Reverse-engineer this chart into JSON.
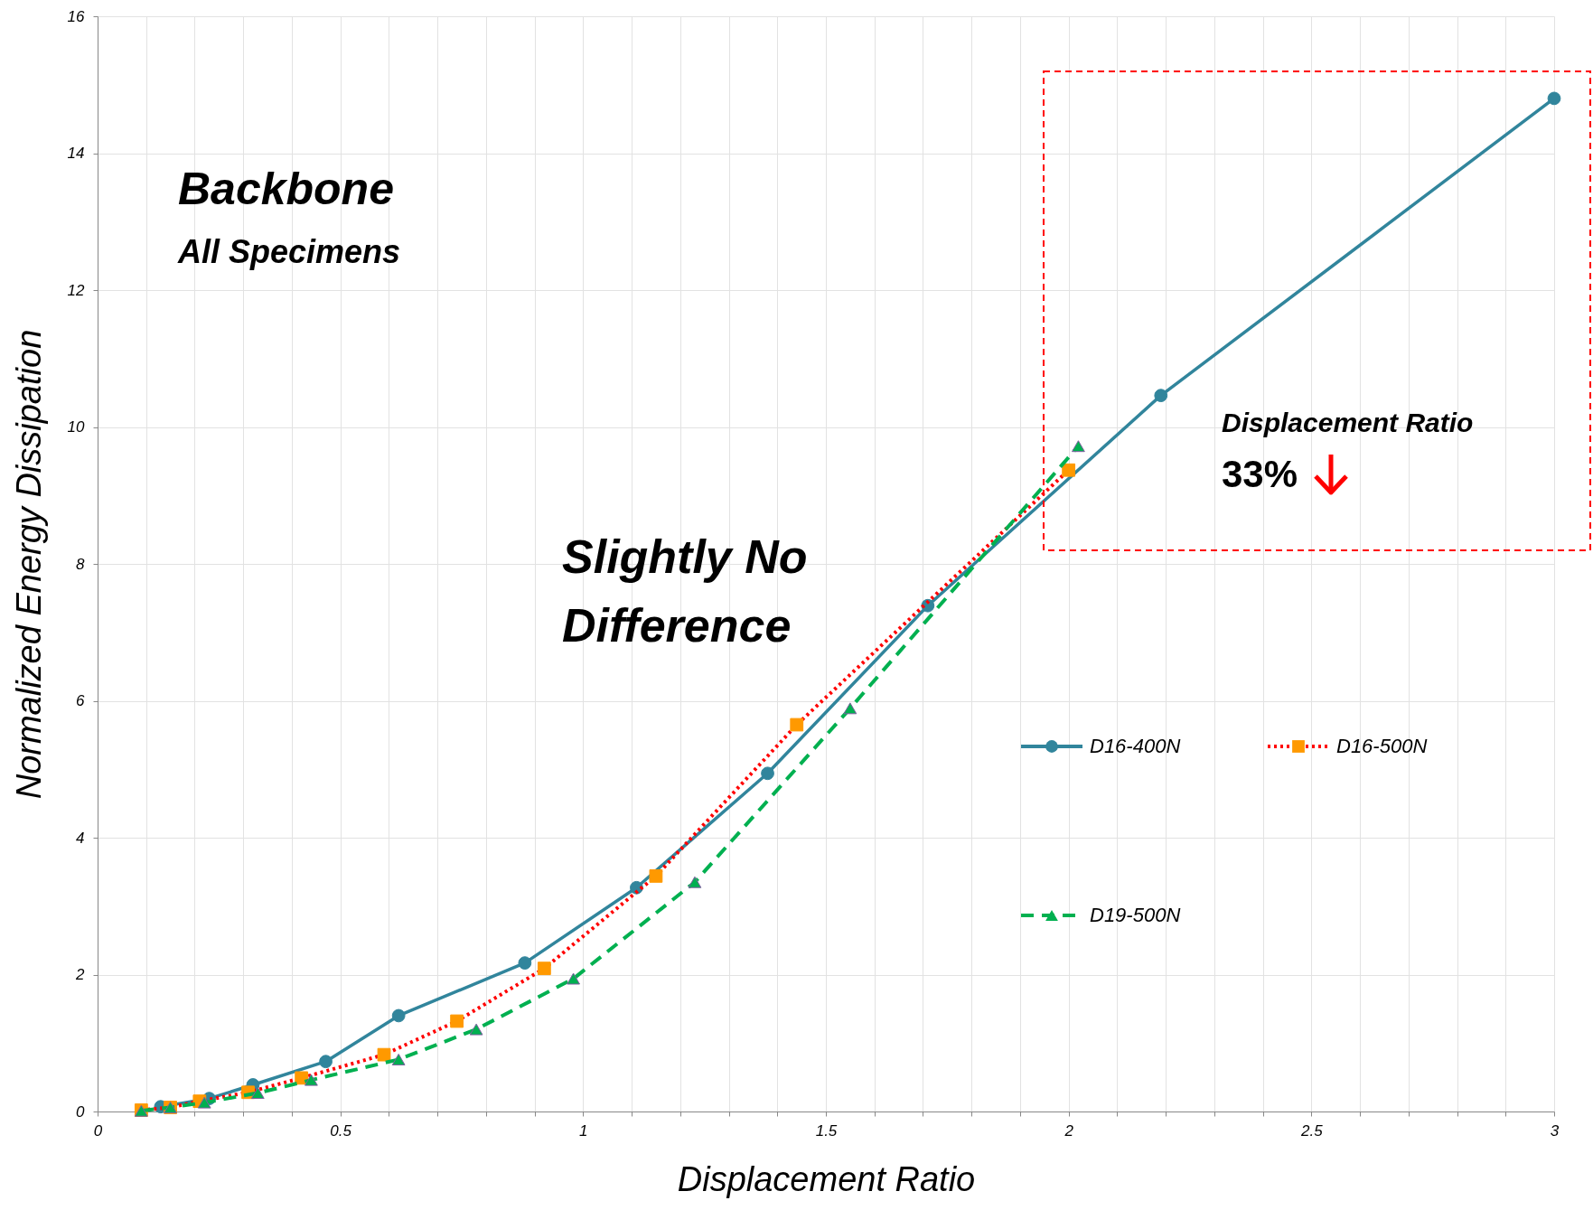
{
  "chart_data": {
    "type": "line",
    "xlabel": "Displacement Ratio",
    "ylabel": "Normalized Energy Dissipation",
    "xlim": [
      0,
      3
    ],
    "ylim": [
      0,
      16
    ],
    "xticks": [
      0,
      {
        "value": 0.1,
        "label": null
      },
      {
        "value": 0.2,
        "label": null
      },
      {
        "value": 0.3,
        "label": null
      },
      {
        "value": 0.4,
        "label": null
      },
      0.5,
      {
        "value": 0.6,
        "label": null
      },
      {
        "value": 0.7,
        "label": null
      },
      {
        "value": 0.8,
        "label": null
      },
      {
        "value": 0.9,
        "label": null
      },
      1,
      {
        "value": 1.1,
        "label": null
      },
      {
        "value": 1.2,
        "label": null
      },
      {
        "value": 1.3,
        "label": null
      },
      {
        "value": 1.4,
        "label": null
      },
      1.5,
      {
        "value": 1.6,
        "label": null
      },
      {
        "value": 1.7,
        "label": null
      },
      {
        "value": 1.8,
        "label": null
      },
      {
        "value": 1.9,
        "label": null
      },
      2,
      {
        "value": 2.1,
        "label": null
      },
      {
        "value": 2.2,
        "label": null
      },
      {
        "value": 2.3,
        "label": null
      },
      {
        "value": 2.4,
        "label": null
      },
      2.5,
      {
        "value": 2.6,
        "label": null
      },
      {
        "value": 2.7,
        "label": null
      },
      {
        "value": 2.8,
        "label": null
      },
      {
        "value": 2.9,
        "label": null
      },
      3
    ],
    "yticks": [
      0,
      2,
      4,
      6,
      8,
      10,
      12,
      14,
      16
    ],
    "grid": true,
    "legend": "right",
    "series": [
      {
        "name": "D16-400N",
        "color": "#31859c",
        "marker": "circle",
        "line_style": "solid",
        "x": [
          0.13,
          0.23,
          0.32,
          0.47,
          0.62,
          0.88,
          1.11,
          1.38,
          1.71,
          2.19,
          3.0
        ],
        "values": [
          0.07,
          0.19,
          0.39,
          0.73,
          1.4,
          2.17,
          3.27,
          4.94,
          7.39,
          10.46,
          14.8
        ]
      },
      {
        "name": "D16-500N",
        "color": "#ff0000",
        "marker": "square",
        "line_style": "dotted",
        "x": [
          0.09,
          0.15,
          0.21,
          0.31,
          0.42,
          0.59,
          0.74,
          0.92,
          1.15,
          1.44,
          2.0
        ],
        "values": [
          0.02,
          0.06,
          0.15,
          0.28,
          0.49,
          0.83,
          1.32,
          2.09,
          3.44,
          5.65,
          9.37
        ]
      },
      {
        "name": "D19-500N",
        "color": "#00b050",
        "marker": "triangle",
        "line_style": "dashed",
        "x": [
          0.09,
          0.15,
          0.22,
          0.33,
          0.44,
          0.62,
          0.78,
          0.98,
          1.23,
          1.55,
          2.02
        ],
        "values": [
          0.01,
          0.06,
          0.13,
          0.27,
          0.46,
          0.76,
          1.2,
          1.94,
          3.35,
          5.89,
          9.72
        ]
      }
    ],
    "annotations": [
      "Backbone",
      "All Specimens",
      "Slightly No Difference",
      "Displacement Ratio",
      "33%"
    ]
  }
}
